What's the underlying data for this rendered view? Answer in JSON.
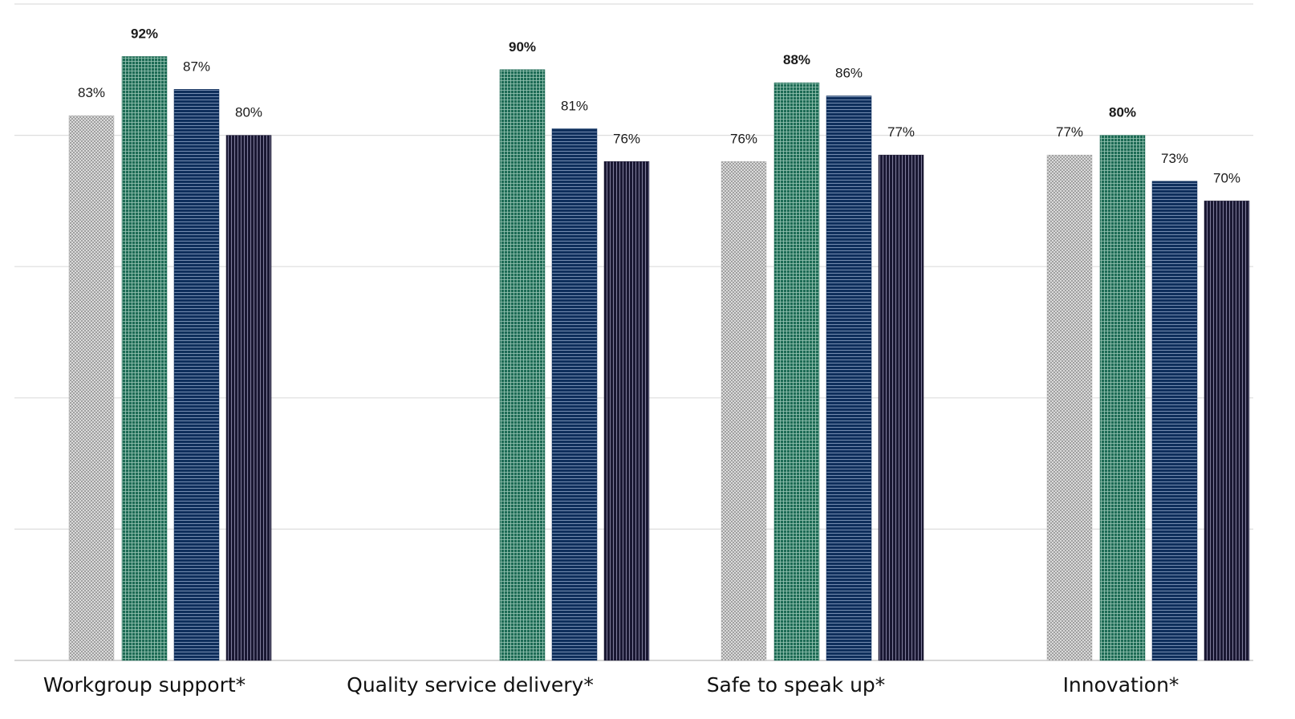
{
  "chart_data": {
    "type": "bar",
    "title": "",
    "xlabel": "",
    "ylabel": "",
    "ylim": [
      0,
      100
    ],
    "grid": true,
    "categories": [
      "Workgroup support*",
      "Quality service delivery*",
      "Safe to speak up*",
      "Innovation*"
    ],
    "series": [
      {
        "color": "#b5b5b5",
        "pattern": "crosshatch",
        "values": [
          83,
          null,
          76,
          77
        ],
        "labels": [
          "83%",
          "",
          "76%",
          "77%"
        ],
        "bold": false
      },
      {
        "color": "#1d6b55",
        "pattern": "grid",
        "values": [
          92,
          90,
          88,
          80
        ],
        "labels": [
          "92%",
          "90%",
          "88%",
          "80%"
        ],
        "bold": true
      },
      {
        "color": "#0f2f5c",
        "pattern": "horizontal-lines",
        "values": [
          87,
          81,
          86,
          73
        ],
        "labels": [
          "87%",
          "81%",
          "86%",
          "73%"
        ],
        "bold": false
      },
      {
        "color": "#1a1833",
        "pattern": "vertical-lines",
        "values": [
          80,
          76,
          77,
          70
        ],
        "labels": [
          "80%",
          "76%",
          "77%",
          "70%"
        ],
        "bold": false
      }
    ]
  }
}
